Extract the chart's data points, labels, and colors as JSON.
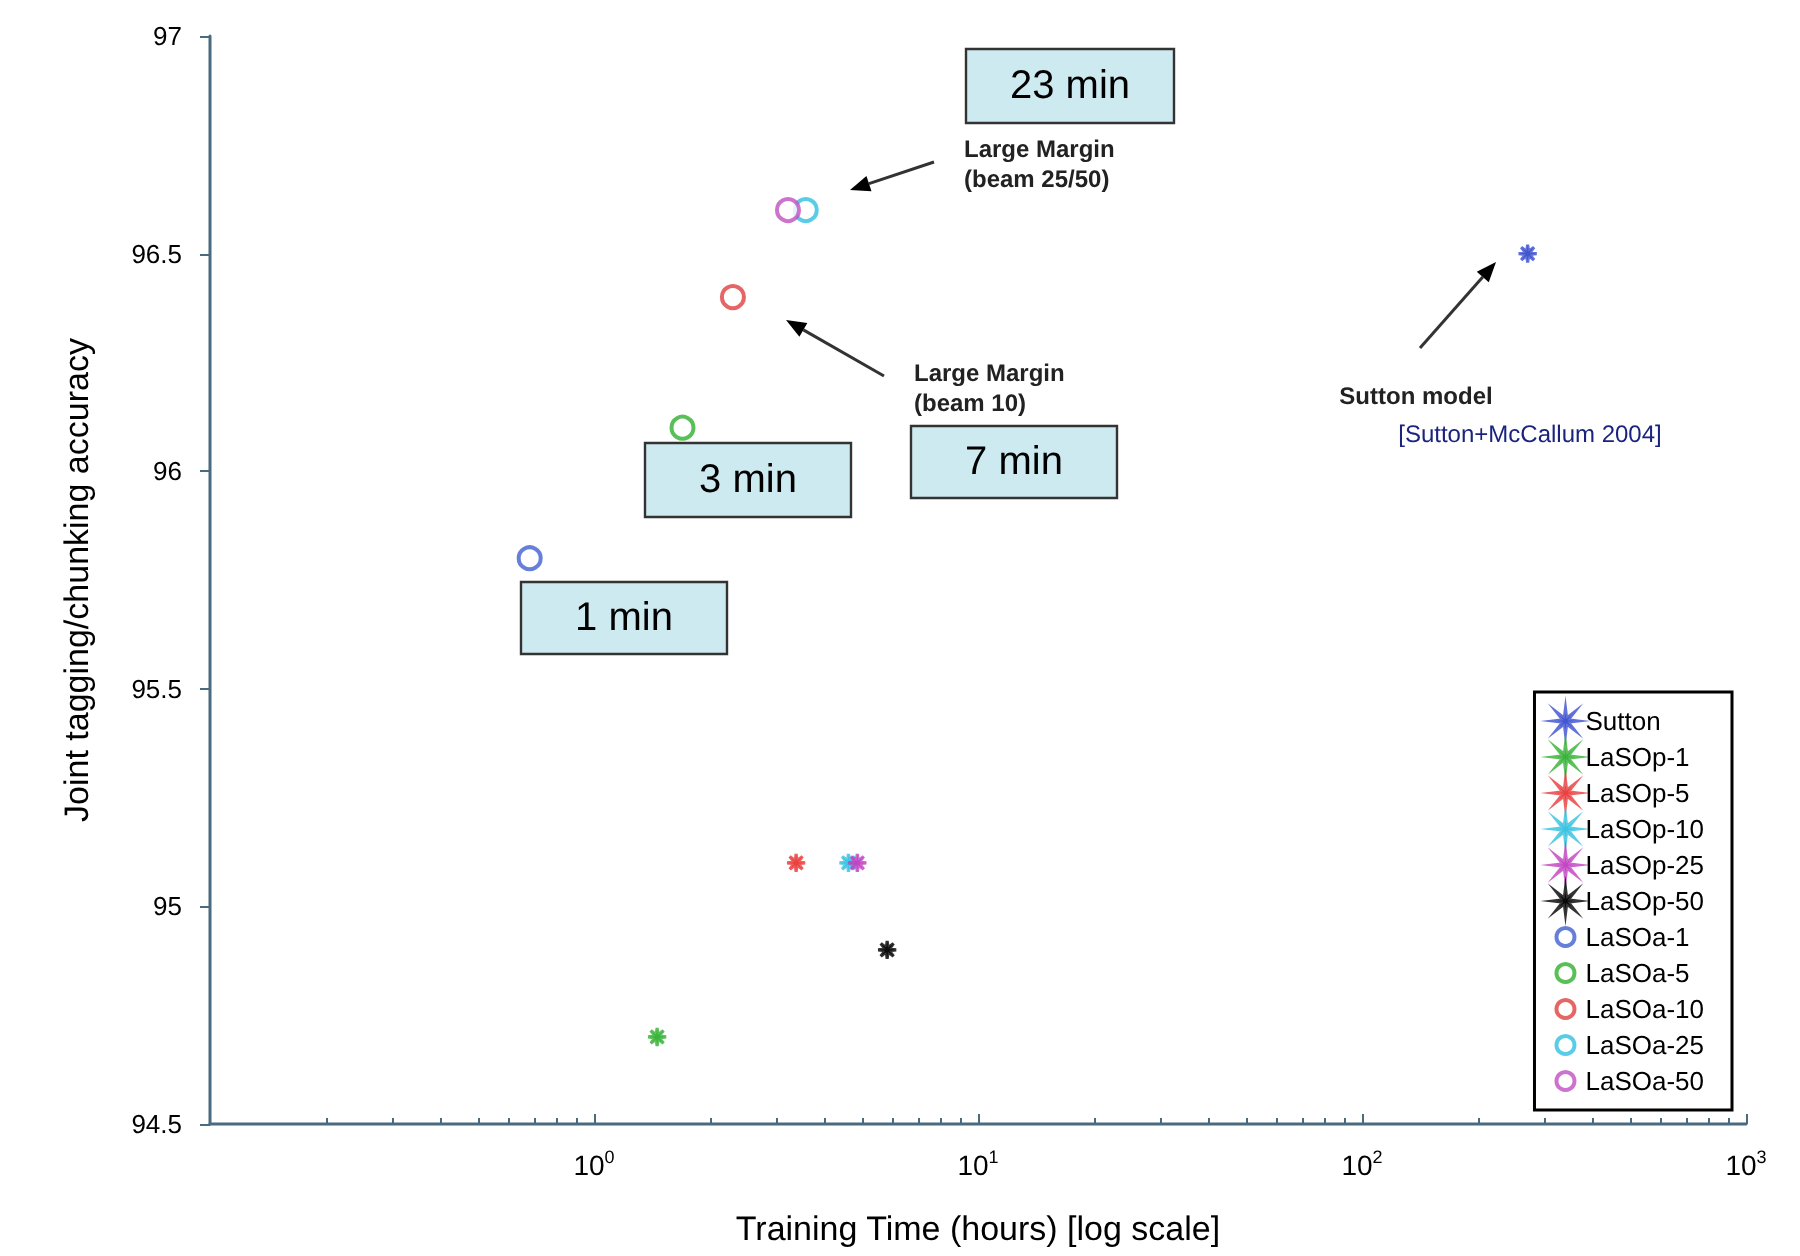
{
  "chart_data": {
    "type": "scatter",
    "xlabel": "Training Time (hours) [log scale]",
    "ylabel": "Joint tagging/chunking accuracy",
    "log": "x",
    "xlim": [
      0.1,
      1000
    ],
    "xticks": [
      {
        "value": 1,
        "label": "10$^{0}$"
      },
      {
        "value": 10,
        "label": "10$^{1}$"
      },
      {
        "value": 100,
        "label": "10$^{2}$"
      },
      {
        "value": 1000,
        "label": "10$^{3}$"
      }
    ],
    "ylim": [
      94.5,
      97
    ],
    "yticks": [
      94.5,
      95,
      95.5,
      96,
      96.5,
      97
    ],
    "grid": false,
    "legend": "bottom right",
    "series": [
      {
        "name": "Sutton",
        "color": "#3b4fd0",
        "marker": "star",
        "x": [
          270
        ],
        "values": [
          96.5
        ]
      },
      {
        "name": "LaSOp-1",
        "color": "#33b033",
        "marker": "star",
        "x": [
          1.46
        ],
        "values": [
          94.7
        ]
      },
      {
        "name": "LaSOp-5",
        "color": "#e83a3a",
        "marker": "star",
        "x": [
          3.36
        ],
        "values": [
          95.1
        ]
      },
      {
        "name": "LaSOp-10",
        "color": "#33c0e0",
        "marker": "star",
        "x": [
          4.6
        ],
        "values": [
          95.1
        ]
      },
      {
        "name": "LaSOp-25",
        "color": "#c040c0",
        "marker": "star",
        "x": [
          4.85
        ],
        "values": [
          95.1
        ]
      },
      {
        "name": "LaSOp-50",
        "color": "#000000",
        "marker": "star",
        "x": [
          5.8
        ],
        "values": [
          94.9
        ]
      },
      {
        "name": "LaSOa-1",
        "color": "#4060d0",
        "marker": "circle",
        "x": [
          0.68
        ],
        "values": [
          95.8
        ]
      },
      {
        "name": "LaSOa-5",
        "color": "#30b030",
        "marker": "circle",
        "x": [
          1.7
        ],
        "values": [
          96.1
        ]
      },
      {
        "name": "LaSOa-10",
        "color": "#e04040",
        "marker": "circle",
        "x": [
          2.3
        ],
        "values": [
          96.4
        ]
      },
      {
        "name": "LaSOa-25",
        "color": "#30c0e0",
        "marker": "circle",
        "x": [
          3.56
        ],
        "values": [
          96.6
        ]
      },
      {
        "name": "LaSOa-50",
        "color": "#c050c0",
        "marker": "circle",
        "x": [
          3.2
        ],
        "values": [
          96.6
        ]
      }
    ],
    "annotations": [
      "23 min",
      "Large Margin\n(beam 25/50)",
      "Large Margin\n(beam 10)",
      "7 min",
      "3 min",
      "1 min",
      "Sutton model",
      "[Sutton+McCallum 2004]"
    ]
  }
}
